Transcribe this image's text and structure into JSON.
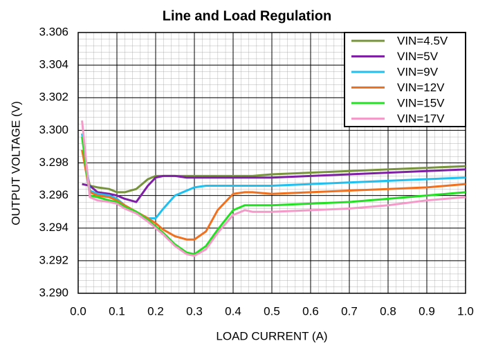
{
  "chart_data": {
    "type": "line",
    "title": "Line and Load Regulation",
    "x_label": "LOAD CURRENT (A)",
    "y_label": "OUTPUT VOLTAGE (V)",
    "x": [
      0.01,
      0.03,
      0.05,
      0.08,
      0.1,
      0.12,
      0.15,
      0.18,
      0.2,
      0.22,
      0.25,
      0.28,
      0.3,
      0.33,
      0.36,
      0.4,
      0.43,
      0.45,
      0.5,
      0.6,
      0.7,
      0.8,
      0.9,
      1.0
    ],
    "series": [
      {
        "name": "VIN=4.5V",
        "color": "#77933c",
        "values": [
          3.2988,
          3.2966,
          3.2965,
          3.2964,
          3.2962,
          3.2962,
          3.2964,
          3.297,
          3.2972,
          3.2972,
          3.2972,
          3.2972,
          3.2972,
          3.2972,
          3.2972,
          3.2972,
          3.2972,
          3.2972,
          3.2973,
          3.2974,
          3.2975,
          3.2976,
          3.2977,
          3.2978
        ]
      },
      {
        "name": "VIN=5V",
        "color": "#7f1fa6",
        "values": [
          3.2967,
          3.2966,
          3.2962,
          3.2961,
          3.296,
          3.2958,
          3.2956,
          3.2966,
          3.2971,
          3.2972,
          3.2972,
          3.2971,
          3.2971,
          3.2971,
          3.2971,
          3.2971,
          3.2971,
          3.2971,
          3.2971,
          3.2972,
          3.2973,
          3.2974,
          3.2975,
          3.2976
        ]
      },
      {
        "name": "VIN=9V",
        "color": "#1fc0ef",
        "values": [
          3.2998,
          3.2963,
          3.2961,
          3.296,
          3.2958,
          3.2954,
          3.295,
          3.2946,
          3.2946,
          3.2952,
          3.296,
          3.2963,
          3.2965,
          3.2966,
          3.2966,
          3.2966,
          3.2966,
          3.2966,
          3.2966,
          3.2967,
          3.2968,
          3.2969,
          3.297,
          3.2971
        ]
      },
      {
        "name": "VIN=12V",
        "color": "#f0701e",
        "values": [
          3.2988,
          3.2962,
          3.296,
          3.2959,
          3.2957,
          3.2954,
          3.295,
          3.2946,
          3.2943,
          3.2939,
          3.2935,
          3.2933,
          3.2933,
          3.2938,
          3.2951,
          3.2961,
          3.2962,
          3.2962,
          3.2961,
          3.2962,
          3.2963,
          3.2964,
          3.2965,
          3.2967
        ]
      },
      {
        "name": "VIN=15V",
        "color": "#22e022",
        "values": [
          3.2996,
          3.296,
          3.2959,
          3.2957,
          3.2956,
          3.2953,
          3.295,
          3.2945,
          3.2941,
          3.2937,
          3.293,
          3.2925,
          3.2924,
          3.2929,
          3.2939,
          3.2951,
          3.2954,
          3.2954,
          3.2954,
          3.2955,
          3.2956,
          3.2958,
          3.296,
          3.2962
        ]
      },
      {
        "name": "VIN=17V",
        "color": "#f49ac8",
        "values": [
          3.3006,
          3.2959,
          3.2957,
          3.2956,
          3.2955,
          3.2952,
          3.2949,
          3.2944,
          3.294,
          3.2936,
          3.2929,
          3.2924,
          3.2923,
          3.2927,
          3.2937,
          3.2948,
          3.2951,
          3.295,
          3.295,
          3.2951,
          3.2952,
          3.2954,
          3.2957,
          3.2959
        ]
      }
    ],
    "xlim": [
      0,
      1
    ],
    "xticks": [
      {
        "value": 0,
        "label": "0.0"
      },
      0.1,
      0.2,
      0.3,
      0.4,
      0.5,
      0.6,
      0.7,
      0.8,
      0.9,
      {
        "value": 1,
        "label": "1.0"
      }
    ],
    "ylim": [
      3.29,
      3.306
    ],
    "yticks": [
      {
        "value": 3.29,
        "label": "3.290"
      },
      3.292,
      3.294,
      3.296,
      3.298,
      {
        "value": 3.3,
        "label": "3.300"
      },
      3.302,
      3.304,
      3.306
    ],
    "grid": true,
    "legend": "upper right"
  }
}
